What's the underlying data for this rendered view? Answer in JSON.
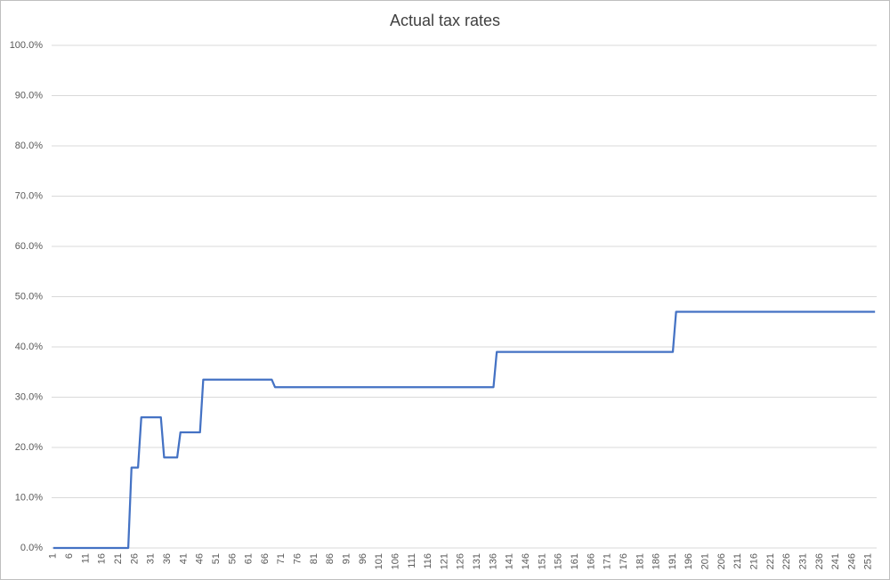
{
  "chart_data": {
    "type": "line",
    "title": "Actual tax rates",
    "categories": [
      1,
      null,
      null,
      null,
      null,
      6,
      null,
      null,
      null,
      null,
      11,
      null,
      null,
      null,
      null,
      16,
      null,
      null,
      null,
      null,
      21,
      null,
      null,
      null,
      null,
      26,
      null,
      null,
      null,
      null,
      31,
      null,
      null,
      null,
      null,
      36,
      null,
      null,
      null,
      null,
      41,
      null,
      null,
      null,
      null,
      46,
      null,
      null,
      null,
      null,
      51,
      null,
      null,
      null,
      null,
      56,
      null,
      null,
      null,
      null,
      61,
      null,
      null,
      null,
      null,
      66,
      null,
      null,
      null,
      null,
      71,
      null,
      null,
      null,
      null,
      76,
      null,
      null,
      null,
      null,
      81,
      null,
      null,
      null,
      null,
      86,
      null,
      null,
      null,
      null,
      91,
      null,
      null,
      null,
      null,
      96,
      null,
      null,
      null,
      null,
      101,
      null,
      null,
      null,
      null,
      106,
      null,
      null,
      null,
      null,
      111,
      null,
      null,
      null,
      null,
      116,
      null,
      null,
      null,
      null,
      121,
      null,
      null,
      null,
      null,
      126,
      null,
      null,
      null,
      null,
      131,
      null,
      null,
      null,
      null,
      136,
      null,
      null,
      null,
      null,
      141,
      null,
      null,
      null,
      null,
      146,
      null,
      null,
      null,
      null,
      151,
      null,
      null,
      null,
      null,
      156,
      null,
      null,
      null,
      null,
      161,
      null,
      null,
      null,
      null,
      166,
      null,
      null,
      null,
      null,
      171,
      null,
      null,
      null,
      null,
      176,
      null,
      null,
      null,
      null,
      181,
      null,
      null,
      null,
      null,
      186,
      null,
      null,
      null,
      null,
      191,
      null,
      null,
      null,
      null,
      196,
      null,
      null,
      null,
      null,
      201,
      null,
      null,
      null,
      null,
      206,
      null,
      null,
      null,
      null,
      211,
      null,
      null,
      null,
      null,
      216,
      null,
      null,
      null,
      null,
      221,
      null,
      null,
      null,
      null,
      226,
      null,
      null,
      null,
      null,
      231,
      null,
      null,
      null,
      null,
      236,
      null,
      null,
      null,
      null,
      241,
      null,
      null,
      null,
      null,
      246,
      null,
      null,
      null,
      null,
      251,
      null,
      null
    ],
    "values": [
      0,
      0,
      0,
      0,
      0,
      0,
      0,
      0,
      0,
      0,
      0,
      0,
      0,
      0,
      0,
      0,
      0,
      0,
      0,
      0,
      0,
      0,
      0,
      0,
      16,
      16,
      16,
      26,
      26,
      26,
      26,
      26,
      26,
      26,
      18,
      18,
      18,
      18,
      18,
      23,
      23,
      23,
      23,
      23,
      23,
      23,
      33.5,
      33.5,
      33.5,
      33.5,
      33.5,
      33.5,
      33.5,
      33.5,
      33.5,
      33.5,
      33.5,
      33.5,
      33.5,
      33.5,
      33.5,
      33.5,
      33.5,
      33.5,
      33.5,
      33.5,
      33.5,
      33.5,
      32,
      32,
      32,
      32,
      32,
      32,
      32,
      32,
      32,
      32,
      32,
      32,
      32,
      32,
      32,
      32,
      32,
      32,
      32,
      32,
      32,
      32,
      32,
      32,
      32,
      32,
      32,
      32,
      32,
      32,
      32,
      32,
      32,
      32,
      32,
      32,
      32,
      32,
      32,
      32,
      32,
      32,
      32,
      32,
      32,
      32,
      32,
      32,
      32,
      32,
      32,
      32,
      32,
      32,
      32,
      32,
      32,
      32,
      32,
      32,
      32,
      32,
      32,
      32,
      32,
      32,
      32,
      32,
      39,
      39,
      39,
      39,
      39,
      39,
      39,
      39,
      39,
      39,
      39,
      39,
      39,
      39,
      39,
      39,
      39,
      39,
      39,
      39,
      39,
      39,
      39,
      39,
      39,
      39,
      39,
      39,
      39,
      39,
      39,
      39,
      39,
      39,
      39,
      39,
      39,
      39,
      39,
      39,
      39,
      39,
      39,
      39,
      39,
      39,
      39,
      39,
      39,
      39,
      39,
      39,
      39,
      39,
      39,
      47,
      47,
      47,
      47,
      47,
      47,
      47,
      47,
      47,
      47,
      47,
      47,
      47,
      47,
      47,
      47,
      47,
      47,
      47,
      47,
      47,
      47,
      47,
      47,
      47,
      47,
      47,
      47,
      47,
      47,
      47,
      47,
      47,
      47,
      47,
      47,
      47,
      47,
      47,
      47,
      47,
      47,
      47,
      47,
      47,
      47,
      47,
      47,
      47,
      47,
      47,
      47,
      47,
      47,
      47,
      47,
      47,
      47,
      47,
      47,
      47,
      47
    ],
    "color": "#4472c4",
    "ylim": [
      0,
      100
    ],
    "yticks": [
      {
        "value": 0,
        "label": "0.0%"
      },
      {
        "value": 10,
        "label": "10.0%"
      },
      {
        "value": 20,
        "label": "20.0%"
      },
      {
        "value": 30,
        "label": "30.0%"
      },
      {
        "value": 40,
        "label": "40.0%"
      },
      {
        "value": 50,
        "label": "50.0%"
      },
      {
        "value": 60,
        "label": "60.0%"
      },
      {
        "value": 70,
        "label": "70.0%"
      },
      {
        "value": 80,
        "label": "80.0%"
      },
      {
        "value": 90,
        "label": "90.0%"
      },
      {
        "value": 100,
        "label": "100.0%"
      }
    ],
    "grid": true
  }
}
